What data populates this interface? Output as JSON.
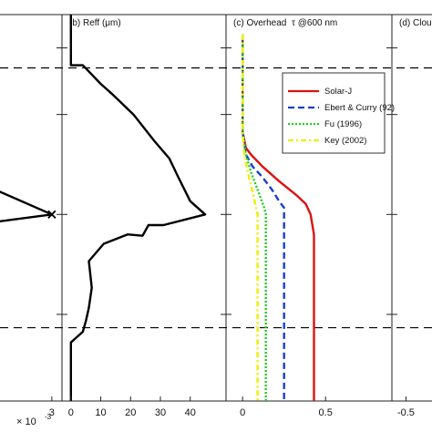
{
  "chart_data": [
    {
      "panel": "a",
      "type": "line",
      "title": "",
      "xlim": [
        0,
        0.0035
      ],
      "x_ticks": [
        {
          "value": 0.003,
          "label": "3"
        }
      ],
      "exponent_label": "× 10",
      "exponent_power": "-3",
      "series": [
        {
          "color": "#000000",
          "points": [
            [
              0,
              0.2
            ],
            [
              0.003,
              0.0
            ]
          ]
        },
        {
          "color": "#000000",
          "points": [
            [
              0.003,
              0.0
            ],
            [
              0,
              -0.06
            ]
          ]
        }
      ],
      "marker": {
        "x": 0.003,
        "y": 0.0,
        "symbol": "x"
      }
    },
    {
      "panel": "b",
      "type": "line",
      "title": "(b) Reff (μm)",
      "xlim": [
        -3,
        52
      ],
      "x_ticks": [
        {
          "value": 0,
          "label": "0"
        },
        {
          "value": 10,
          "label": "10"
        },
        {
          "value": 20,
          "label": "20"
        },
        {
          "value": 30,
          "label": "30"
        },
        {
          "value": 40,
          "label": "40"
        }
      ],
      "series": [
        {
          "color": "#000000",
          "points": [
            [
              0,
              1.5
            ],
            [
              0,
              1.12
            ],
            [
              4,
              1.12
            ],
            [
              10,
              0.98
            ],
            [
              14,
              0.9
            ],
            [
              21,
              0.75
            ],
            [
              28,
              0.55
            ],
            [
              33,
              0.42
            ],
            [
              36,
              0.28
            ],
            [
              40,
              0.1
            ],
            [
              45,
              0.0
            ],
            [
              31,
              -0.08
            ],
            [
              26,
              -0.08
            ],
            [
              24,
              -0.16
            ],
            [
              19,
              -0.15
            ],
            [
              11,
              -0.22
            ],
            [
              6,
              -0.35
            ],
            [
              7,
              -0.55
            ],
            [
              6,
              -0.7
            ],
            [
              5,
              -0.8
            ],
            [
              4,
              -0.88
            ],
            [
              0,
              -0.96
            ],
            [
              0,
              -1.4
            ]
          ]
        }
      ]
    },
    {
      "panel": "c",
      "type": "line",
      "title": "(c) Overhead",
      "title_tau": "τ @600 nm",
      "xlim": [
        -0.1,
        0.9
      ],
      "x_ticks": [
        {
          "value": 0,
          "label": "0"
        },
        {
          "value": 0.5,
          "label": "0.5"
        }
      ],
      "legend": [
        "Solar-J",
        "Ebert & Curry (92)",
        "Fu (1996)",
        "Key (2002)"
      ],
      "series": [
        {
          "name": "Solar-J",
          "color": "#dd1111",
          "dash": "",
          "points": [
            [
              0,
              1.35
            ],
            [
              0,
              0.62
            ],
            [
              0.02,
              0.5
            ],
            [
              0.05,
              0.45
            ],
            [
              0.12,
              0.36
            ],
            [
              0.22,
              0.25
            ],
            [
              0.32,
              0.15
            ],
            [
              0.38,
              0.08
            ],
            [
              0.41,
              0.0
            ],
            [
              0.43,
              -0.15
            ],
            [
              0.43,
              -1.4
            ]
          ]
        },
        {
          "name": "Ebert & Curry (92)",
          "color": "#1a3fd1",
          "dash": "7,4",
          "points": [
            [
              0,
              1.35
            ],
            [
              0,
              0.62
            ],
            [
              0.02,
              0.45
            ],
            [
              0.06,
              0.36
            ],
            [
              0.12,
              0.28
            ],
            [
              0.18,
              0.18
            ],
            [
              0.22,
              0.1
            ],
            [
              0.25,
              0.05
            ],
            [
              0.25,
              -1.4
            ]
          ]
        },
        {
          "name": "Fu (1996)",
          "color": "#22cc22",
          "dash": "2,2",
          "points": [
            [
              0,
              1.35
            ],
            [
              0,
              0.62
            ],
            [
              0.02,
              0.45
            ],
            [
              0.05,
              0.32
            ],
            [
              0.08,
              0.22
            ],
            [
              0.11,
              0.12
            ],
            [
              0.13,
              0.05
            ],
            [
              0.14,
              0.0
            ],
            [
              0.14,
              -1.4
            ]
          ]
        },
        {
          "name": "Key (2002)",
          "color": "#eeee00",
          "dash": "6,3,2,3",
          "points": [
            [
              0,
              1.35
            ],
            [
              0,
              0.62
            ],
            [
              0.01,
              0.45
            ],
            [
              0.03,
              0.32
            ],
            [
              0.05,
              0.22
            ],
            [
              0.07,
              0.12
            ],
            [
              0.08,
              0.05
            ],
            [
              0.09,
              0.0
            ],
            [
              0.09,
              -1.4
            ]
          ]
        }
      ]
    },
    {
      "panel": "d",
      "type": "line",
      "title": "(d) Cloudi",
      "xlim": [
        -0.9,
        0.5
      ],
      "x_ticks": [
        {
          "value": -0.5,
          "label": "-0.5"
        }
      ],
      "series": []
    }
  ],
  "reference_lines": {
    "y_values": [
      1.1,
      -0.85
    ],
    "color": "#000000",
    "style": "dashed"
  },
  "y_ticks": [
    1.25,
    0.75,
    0.0,
    -0.75
  ]
}
